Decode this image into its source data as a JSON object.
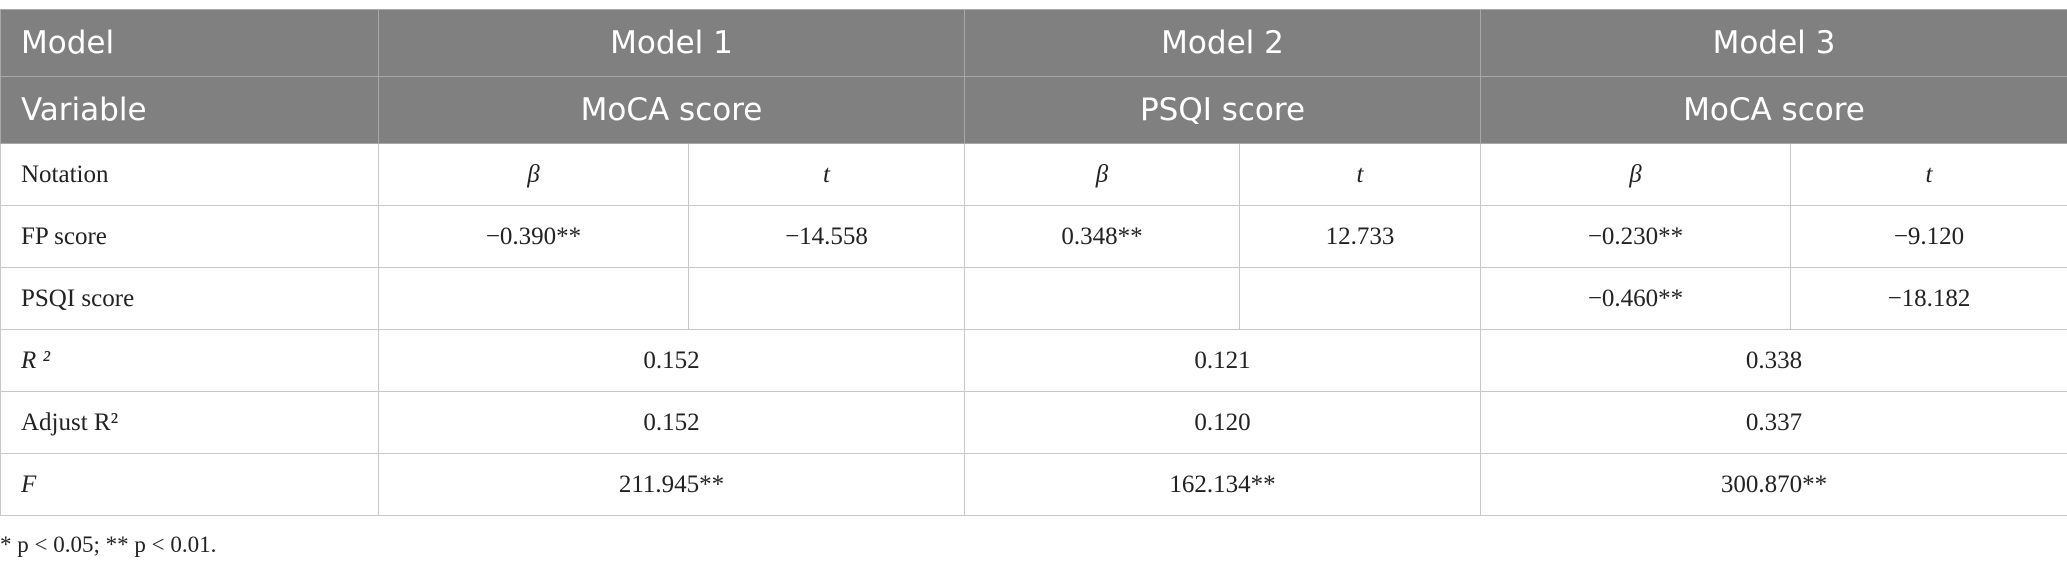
{
  "table": {
    "header": [
      [
        "Model",
        "Model 1",
        "Model 2",
        "Model 3"
      ],
      [
        "Variable",
        "MoCA score",
        "PSQI score",
        "MoCA score"
      ]
    ],
    "rows": [
      [
        "Notation",
        "β",
        "t",
        "β",
        "t",
        "β",
        "t"
      ],
      [
        "FP score",
        "−0.390**",
        "−14.558",
        "0.348**",
        "12.733",
        "−0.230**",
        "−9.120"
      ],
      [
        "PSQI score",
        null,
        null,
        null,
        null,
        "−0.460**",
        "−18.182"
      ],
      [
        "R ²",
        "0.152",
        "0.121",
        "0.338"
      ],
      [
        "Adjust R²",
        "0.152",
        "0.120",
        "0.337"
      ],
      [
        "F",
        "211.945**",
        "162.134**",
        "300.870**"
      ]
    ]
  },
  "footnote": "* p < 0.05; ** p < 0.01."
}
